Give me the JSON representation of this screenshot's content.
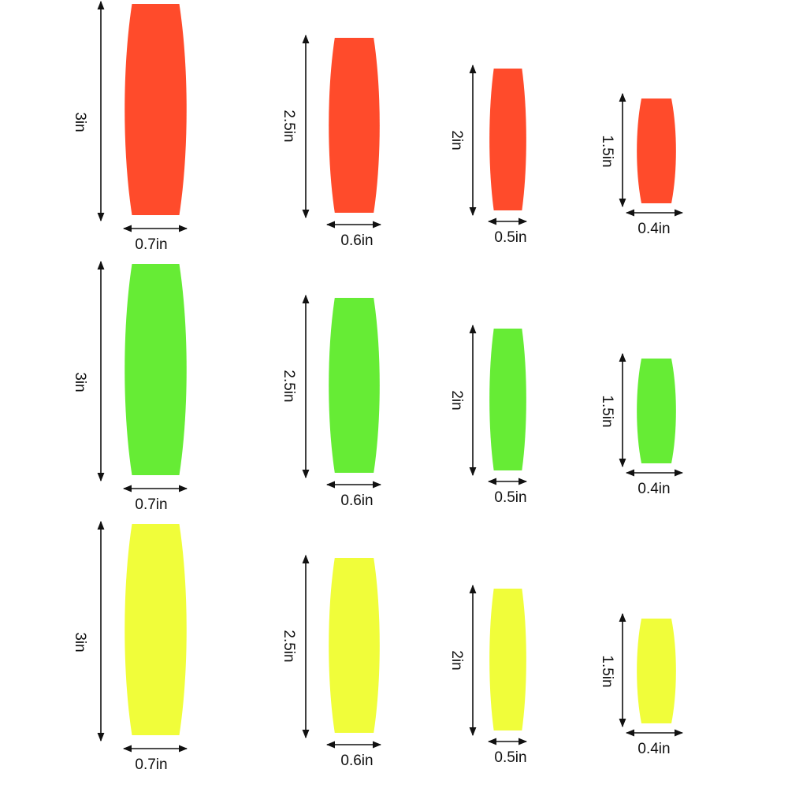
{
  "rows": [
    {
      "items": [
        {
          "height": "3in",
          "width": "0.7in"
        },
        {
          "height": "2.5in",
          "width": "0.6in"
        },
        {
          "height": "2in",
          "width": "0.5in"
        },
        {
          "height": "1.5in",
          "width": "0.4in"
        }
      ]
    },
    {
      "items": [
        {
          "height": "3in",
          "width": "0.7in"
        },
        {
          "height": "2.5in",
          "width": "0.6in"
        },
        {
          "height": "2in",
          "width": "0.5in"
        },
        {
          "height": "1.5in",
          "width": "0.4in"
        }
      ]
    },
    {
      "items": [
        {
          "height": "3in",
          "width": "0.7in"
        },
        {
          "height": "2.5in",
          "width": "0.6in"
        },
        {
          "height": "2in",
          "width": "0.5in"
        },
        {
          "height": "1.5in",
          "width": "0.4in"
        }
      ]
    }
  ]
}
